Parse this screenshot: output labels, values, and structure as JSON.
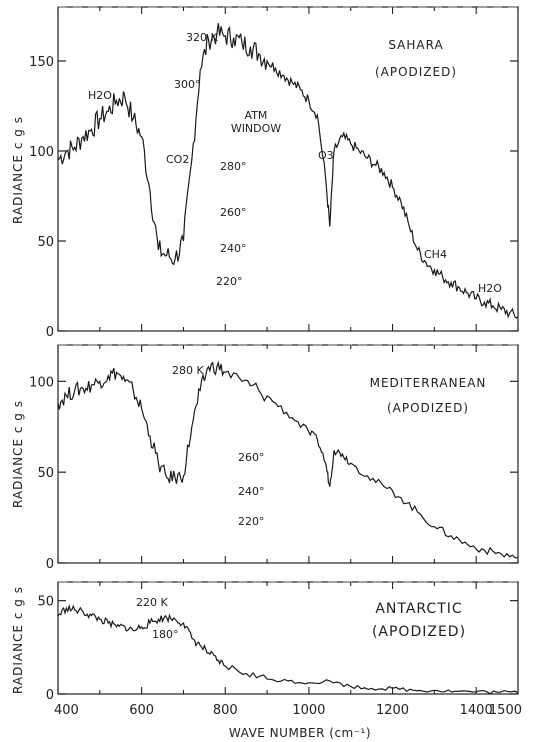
{
  "chart_data": [
    {
      "type": "line",
      "title": "SAHARA",
      "subtitle": "(APODIZED)",
      "ylabel": "RADIANCE  c g s",
      "xlim": [
        400,
        1500
      ],
      "ylim": [
        0,
        180
      ],
      "yticks": [
        0,
        50,
        100,
        150
      ],
      "blackbody_curves": [
        {
          "label": "320 K",
          "temperature": 320
        },
        {
          "label": "300°",
          "temperature": 300
        },
        {
          "label": "280°",
          "temperature": 280
        },
        {
          "label": "260°",
          "temperature": 260
        },
        {
          "label": "240°",
          "temperature": 240
        },
        {
          "label": "220°",
          "temperature": 220
        }
      ],
      "annotations": [
        "H2O",
        "CO2",
        "ATM",
        "WINDOW",
        "O3",
        "CH4",
        "H2O"
      ],
      "series": [
        {
          "x": [
            400,
            420,
            440,
            460,
            480,
            500,
            520,
            540,
            560,
            580,
            600,
            620,
            640,
            660,
            680,
            700,
            720,
            740,
            760,
            780,
            800,
            820,
            840,
            860,
            880,
            900,
            920,
            940,
            960,
            980,
            1000,
            1020,
            1040,
            1050,
            1060,
            1080,
            1100,
            1120,
            1140,
            1160,
            1180,
            1200,
            1220,
            1240,
            1260,
            1280,
            1300,
            1320,
            1340,
            1360,
            1380,
            1400,
            1420,
            1440,
            1460,
            1480,
            1500
          ],
          "values": [
            95,
            100,
            102,
            108,
            112,
            118,
            122,
            128,
            130,
            118,
            108,
            78,
            45,
            42,
            40,
            50,
            95,
            145,
            162,
            165,
            164,
            163,
            160,
            158,
            154,
            150,
            146,
            142,
            138,
            134,
            128,
            120,
            85,
            58,
            100,
            108,
            104,
            100,
            96,
            92,
            88,
            80,
            72,
            58,
            45,
            38,
            34,
            30,
            27,
            24,
            21,
            18,
            16,
            14,
            12,
            10,
            8
          ]
        }
      ]
    },
    {
      "type": "line",
      "title": "MEDITERRANEAN",
      "subtitle": "(APODIZED)",
      "ylabel": "RADIANCE  c g s",
      "xlim": [
        400,
        1500
      ],
      "ylim": [
        0,
        120
      ],
      "yticks": [
        0,
        50,
        100
      ],
      "blackbody_curves": [
        {
          "label": "280 K",
          "temperature": 280
        },
        {
          "label": "260°",
          "temperature": 260
        },
        {
          "label": "240°",
          "temperature": 240
        },
        {
          "label": "220°",
          "temperature": 220
        }
      ],
      "series": [
        {
          "x": [
            400,
            420,
            440,
            460,
            480,
            500,
            520,
            540,
            560,
            580,
            600,
            620,
            640,
            660,
            680,
            700,
            720,
            740,
            760,
            780,
            800,
            840,
            880,
            920,
            960,
            1000,
            1020,
            1040,
            1050,
            1060,
            1080,
            1100,
            1140,
            1180,
            1220,
            1260,
            1300,
            1340,
            1380,
            1420,
            1460,
            1500
          ],
          "values": [
            88,
            92,
            95,
            96,
            98,
            100,
            103,
            105,
            100,
            95,
            85,
            70,
            55,
            47,
            47,
            48,
            75,
            95,
            108,
            108,
            105,
            100,
            95,
            88,
            80,
            72,
            68,
            55,
            42,
            62,
            60,
            55,
            48,
            42,
            36,
            28,
            20,
            15,
            10,
            7,
            5,
            3
          ]
        }
      ]
    },
    {
      "type": "line",
      "title": "ANTARCTIC",
      "subtitle": "(APODIZED)",
      "ylabel": "RADIANCE  c g s",
      "xlabel": "WAVE NUMBER  (cm⁻¹)",
      "xlim": [
        400,
        1500
      ],
      "ylim": [
        0,
        60
      ],
      "yticks": [
        0,
        50
      ],
      "xticks": [
        400,
        600,
        800,
        1000,
        1200,
        1400,
        1500
      ],
      "blackbody_curves": [
        {
          "label": "220 K",
          "temperature": 220
        },
        {
          "label": "180°",
          "temperature": 180
        }
      ],
      "series": [
        {
          "x": [
            400,
            420,
            440,
            460,
            480,
            500,
            520,
            540,
            560,
            580,
            600,
            620,
            640,
            660,
            680,
            700,
            720,
            740,
            760,
            780,
            800,
            850,
            900,
            950,
            1000,
            1050,
            1100,
            1150,
            1200,
            1250,
            1300,
            1350,
            1400,
            1450,
            1500
          ],
          "values": [
            42,
            46,
            45,
            44,
            42,
            40,
            38,
            36,
            36,
            34,
            36,
            38,
            40,
            41,
            40,
            38,
            30,
            26,
            22,
            18,
            15,
            11,
            8,
            7,
            6,
            7,
            4,
            3,
            3,
            2,
            2,
            1.5,
            1.2,
            1,
            0.8
          ]
        }
      ]
    }
  ]
}
